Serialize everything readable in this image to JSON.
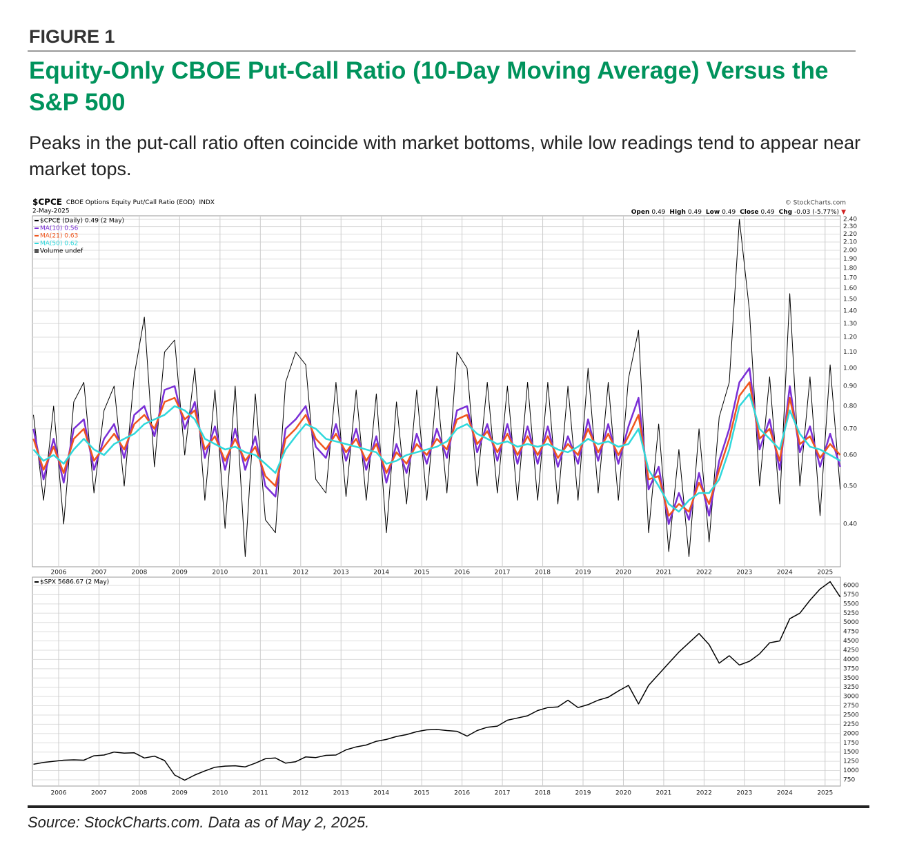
{
  "figure_label": "FIGURE 1",
  "title": "Equity-Only CBOE Put-Call Ratio (10-Day Moving Average) Versus the S&P 500",
  "subtitle": "Peaks in the put-call ratio often coincide with market bottoms, while low readings tend to appear near market tops.",
  "source": "Source: StockCharts.com. Data as of May 2, 2025.",
  "chart_data": [
    {
      "type": "line",
      "title": "$CPCE",
      "subtitle": "CBOE Options Equity Put/Call Ratio (EOD)",
      "exchange": "INDX",
      "date": "2-May-2025",
      "credit": "© StockCharts.com",
      "quote": [
        {
          "label": "Open",
          "text": "0.49"
        },
        {
          "label": "High",
          "text": "0.49"
        },
        {
          "label": "Low",
          "text": "0.49"
        },
        {
          "label": "Close",
          "text": "0.49"
        },
        {
          "label": "Chg",
          "text": "-0.03 (-5.77%)"
        }
      ],
      "change_marker": "▼",
      "volume_legend": "Volume undef",
      "log_scale": true,
      "grid": true,
      "x": [
        2005.375,
        2005.625,
        2005.875,
        2006.125,
        2006.375,
        2006.625,
        2006.875,
        2007.125,
        2007.375,
        2007.625,
        2007.875,
        2008.125,
        2008.375,
        2008.625,
        2008.875,
        2009.125,
        2009.375,
        2009.625,
        2009.875,
        2010.125,
        2010.375,
        2010.625,
        2010.875,
        2011.125,
        2011.375,
        2011.625,
        2011.875,
        2012.125,
        2012.375,
        2012.625,
        2012.875,
        2013.125,
        2013.375,
        2013.625,
        2013.875,
        2014.125,
        2014.375,
        2014.625,
        2014.875,
        2015.125,
        2015.375,
        2015.625,
        2015.875,
        2016.125,
        2016.375,
        2016.625,
        2016.875,
        2017.125,
        2017.375,
        2017.625,
        2017.875,
        2018.125,
        2018.375,
        2018.625,
        2018.875,
        2019.125,
        2019.375,
        2019.625,
        2019.875,
        2020.125,
        2020.375,
        2020.625,
        2020.875,
        2021.125,
        2021.375,
        2021.625,
        2021.875,
        2022.125,
        2022.375,
        2022.625,
        2022.875,
        2023.125,
        2023.375,
        2023.625,
        2023.875,
        2024.125,
        2024.375,
        2024.625,
        2024.875,
        2025.125,
        2025.375
      ],
      "xlim": [
        2005.35,
        2025.38
      ],
      "xticks": [
        2006,
        2007,
        2008,
        2009,
        2010,
        2011,
        2012,
        2013,
        2014,
        2015,
        2016,
        2017,
        2018,
        2019,
        2020,
        2021,
        2022,
        2023,
        2024,
        2025
      ],
      "ylim": [
        0.311,
        2.45
      ],
      "yticks": [
        {
          "value": 0.4,
          "label": "0.40"
        },
        {
          "value": 0.5,
          "label": "0.50"
        },
        {
          "value": 0.6,
          "label": "0.60"
        },
        {
          "value": 0.7,
          "label": "0.70"
        },
        {
          "value": 0.8,
          "label": "0.80"
        },
        {
          "value": 0.9,
          "label": "0.90"
        },
        {
          "value": 1.0,
          "label": "1.00"
        },
        {
          "value": 1.1,
          "label": "1.10"
        },
        {
          "value": 1.2,
          "label": "1.20"
        },
        {
          "value": 1.3,
          "label": "1.30"
        },
        {
          "value": 1.4,
          "label": "1.40"
        },
        {
          "value": 1.5,
          "label": "1.50"
        },
        {
          "value": 1.6,
          "label": "1.60"
        },
        {
          "value": 1.7,
          "label": "1.70"
        },
        {
          "value": 1.8,
          "label": "1.80"
        },
        {
          "value": 1.9,
          "label": "1.90"
        },
        {
          "value": 2.0,
          "label": "2.00"
        },
        {
          "value": 2.1,
          "label": "2.10"
        },
        {
          "value": 2.2,
          "label": "2.20"
        },
        {
          "value": 2.3,
          "label": "2.30"
        },
        {
          "value": 2.4,
          "label": "2.40"
        }
      ],
      "series": [
        {
          "name": "$CPCE (Daily) 0.49 (2 May)",
          "color": "#000000",
          "width": 1,
          "values": [
            0.76,
            0.46,
            0.8,
            0.4,
            0.82,
            0.92,
            0.48,
            0.78,
            0.9,
            0.5,
            0.96,
            1.35,
            0.56,
            1.1,
            1.18,
            0.6,
            1.0,
            0.46,
            0.88,
            0.39,
            0.9,
            0.33,
            0.86,
            0.41,
            0.38,
            0.92,
            1.1,
            1.02,
            0.52,
            0.48,
            0.92,
            0.47,
            0.88,
            0.46,
            0.86,
            0.38,
            0.82,
            0.45,
            0.88,
            0.46,
            0.9,
            0.48,
            1.1,
            1.0,
            0.5,
            0.92,
            0.48,
            0.9,
            0.46,
            0.92,
            0.46,
            0.92,
            0.45,
            0.9,
            0.46,
            1.0,
            0.48,
            0.92,
            0.46,
            0.94,
            1.25,
            0.38,
            0.72,
            0.34,
            0.62,
            0.33,
            0.7,
            0.36,
            0.75,
            0.92,
            2.4,
            1.4,
            0.5,
            0.95,
            0.45,
            1.55,
            0.5,
            0.95,
            0.42,
            1.02,
            0.49
          ]
        },
        {
          "name": "MA(10) 0.56",
          "color": "#7a2fd6",
          "width": 2.5,
          "values": [
            0.7,
            0.52,
            0.66,
            0.51,
            0.7,
            0.74,
            0.55,
            0.66,
            0.72,
            0.59,
            0.76,
            0.8,
            0.67,
            0.88,
            0.9,
            0.7,
            0.82,
            0.59,
            0.71,
            0.55,
            0.7,
            0.55,
            0.67,
            0.5,
            0.47,
            0.7,
            0.74,
            0.8,
            0.63,
            0.59,
            0.72,
            0.58,
            0.7,
            0.55,
            0.67,
            0.51,
            0.64,
            0.54,
            0.68,
            0.57,
            0.7,
            0.59,
            0.78,
            0.8,
            0.61,
            0.72,
            0.58,
            0.72,
            0.57,
            0.71,
            0.57,
            0.71,
            0.56,
            0.67,
            0.57,
            0.74,
            0.58,
            0.72,
            0.57,
            0.71,
            0.84,
            0.49,
            0.56,
            0.4,
            0.48,
            0.41,
            0.54,
            0.42,
            0.58,
            0.7,
            0.92,
            1.0,
            0.62,
            0.74,
            0.55,
            0.9,
            0.61,
            0.71,
            0.56,
            0.68,
            0.56
          ]
        },
        {
          "name": "MA(21) 0.63",
          "color": "#f0561e",
          "width": 2.5,
          "values": [
            0.66,
            0.55,
            0.63,
            0.54,
            0.66,
            0.7,
            0.58,
            0.63,
            0.68,
            0.62,
            0.72,
            0.76,
            0.7,
            0.82,
            0.84,
            0.74,
            0.78,
            0.62,
            0.67,
            0.58,
            0.66,
            0.58,
            0.63,
            0.53,
            0.5,
            0.66,
            0.7,
            0.76,
            0.66,
            0.62,
            0.68,
            0.61,
            0.66,
            0.58,
            0.64,
            0.54,
            0.61,
            0.57,
            0.64,
            0.6,
            0.66,
            0.62,
            0.74,
            0.76,
            0.64,
            0.69,
            0.61,
            0.68,
            0.6,
            0.67,
            0.6,
            0.67,
            0.59,
            0.64,
            0.6,
            0.7,
            0.61,
            0.68,
            0.6,
            0.67,
            0.76,
            0.52,
            0.53,
            0.42,
            0.45,
            0.43,
            0.51,
            0.45,
            0.55,
            0.66,
            0.85,
            0.92,
            0.66,
            0.7,
            0.58,
            0.84,
            0.64,
            0.67,
            0.59,
            0.64,
            0.6
          ]
        },
        {
          "name": "MA(50) 0.62",
          "color": "#2fd8dc",
          "width": 2.5,
          "values": [
            0.62,
            0.58,
            0.6,
            0.57,
            0.62,
            0.66,
            0.62,
            0.6,
            0.64,
            0.66,
            0.68,
            0.72,
            0.74,
            0.76,
            0.8,
            0.78,
            0.74,
            0.66,
            0.64,
            0.62,
            0.63,
            0.61,
            0.6,
            0.57,
            0.54,
            0.62,
            0.67,
            0.72,
            0.7,
            0.66,
            0.65,
            0.64,
            0.63,
            0.62,
            0.61,
            0.57,
            0.58,
            0.6,
            0.61,
            0.62,
            0.63,
            0.65,
            0.7,
            0.72,
            0.68,
            0.66,
            0.64,
            0.65,
            0.63,
            0.64,
            0.63,
            0.64,
            0.62,
            0.61,
            0.63,
            0.66,
            0.64,
            0.65,
            0.63,
            0.64,
            0.7,
            0.55,
            0.5,
            0.45,
            0.43,
            0.46,
            0.48,
            0.48,
            0.52,
            0.62,
            0.8,
            0.86,
            0.7,
            0.66,
            0.62,
            0.78,
            0.68,
            0.63,
            0.62,
            0.6,
            0.58
          ]
        }
      ]
    },
    {
      "type": "line",
      "log_scale": false,
      "grid": true,
      "x": [
        2005.375,
        2005.625,
        2005.875,
        2006.125,
        2006.375,
        2006.625,
        2006.875,
        2007.125,
        2007.375,
        2007.625,
        2007.875,
        2008.125,
        2008.375,
        2008.625,
        2008.875,
        2009.125,
        2009.375,
        2009.625,
        2009.875,
        2010.125,
        2010.375,
        2010.625,
        2010.875,
        2011.125,
        2011.375,
        2011.625,
        2011.875,
        2012.125,
        2012.375,
        2012.625,
        2012.875,
        2013.125,
        2013.375,
        2013.625,
        2013.875,
        2014.125,
        2014.375,
        2014.625,
        2014.875,
        2015.125,
        2015.375,
        2015.625,
        2015.875,
        2016.125,
        2016.375,
        2016.625,
        2016.875,
        2017.125,
        2017.375,
        2017.625,
        2017.875,
        2018.125,
        2018.375,
        2018.625,
        2018.875,
        2019.125,
        2019.375,
        2019.625,
        2019.875,
        2020.125,
        2020.375,
        2020.625,
        2020.875,
        2021.125,
        2021.375,
        2021.625,
        2021.875,
        2022.125,
        2022.375,
        2022.625,
        2022.875,
        2023.125,
        2023.375,
        2023.625,
        2023.875,
        2024.125,
        2024.375,
        2024.625,
        2024.875,
        2025.125,
        2025.375
      ],
      "xlim": [
        2005.35,
        2025.38
      ],
      "xticks": [
        2006,
        2007,
        2008,
        2009,
        2010,
        2011,
        2012,
        2013,
        2014,
        2015,
        2016,
        2017,
        2018,
        2019,
        2020,
        2021,
        2022,
        2023,
        2024,
        2025
      ],
      "ylim": [
        582,
        6223
      ],
      "yticks": [
        750,
        1000,
        1250,
        1500,
        1750,
        2000,
        2250,
        2500,
        2750,
        3000,
        3250,
        3500,
        3750,
        4000,
        4250,
        4500,
        4750,
        5000,
        5250,
        5500,
        5750,
        6000
      ],
      "series": [
        {
          "name": "$SPX 5686.67 (2 May)",
          "color": "#000000",
          "width": 1.5,
          "values": [
            1170,
            1220,
            1250,
            1280,
            1290,
            1280,
            1400,
            1420,
            1500,
            1470,
            1480,
            1340,
            1390,
            1270,
            880,
            740,
            880,
            990,
            1090,
            1120,
            1130,
            1100,
            1200,
            1320,
            1340,
            1200,
            1240,
            1370,
            1350,
            1410,
            1420,
            1560,
            1640,
            1690,
            1790,
            1840,
            1920,
            1970,
            2050,
            2100,
            2110,
            2080,
            2060,
            1930,
            2080,
            2170,
            2200,
            2360,
            2420,
            2480,
            2620,
            2700,
            2720,
            2900,
            2700,
            2780,
            2900,
            2980,
            3150,
            3300,
            2800,
            3300,
            3600,
            3900,
            4200,
            4450,
            4700,
            4400,
            3900,
            4100,
            3850,
            3950,
            4150,
            4450,
            4500,
            5100,
            5250,
            5600,
            5900,
            6100,
            5686.67
          ]
        }
      ]
    }
  ]
}
